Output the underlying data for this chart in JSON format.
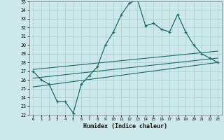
{
  "xlabel": "Humidex (Indice chaleur)",
  "background_color": "#cde8e8",
  "grid_color": "#a8d0d0",
  "line_color": "#1a6b6b",
  "xlim": [
    -0.5,
    23.5
  ],
  "ylim": [
    22,
    35
  ],
  "yticks": [
    22,
    23,
    24,
    25,
    26,
    27,
    28,
    29,
    30,
    31,
    32,
    33,
    34,
    35
  ],
  "xticks": [
    0,
    1,
    2,
    3,
    4,
    5,
    6,
    7,
    8,
    9,
    10,
    11,
    12,
    13,
    14,
    15,
    16,
    17,
    18,
    19,
    20,
    21,
    22,
    23
  ],
  "series1_x": [
    0,
    1,
    2,
    3,
    4,
    5,
    6,
    7,
    8,
    9,
    10,
    11,
    12,
    13,
    14,
    15,
    16,
    17,
    18,
    19,
    20,
    21,
    22,
    23
  ],
  "series1_y": [
    27.0,
    26.0,
    25.5,
    23.5,
    23.5,
    22.2,
    25.5,
    26.5,
    27.5,
    30.0,
    31.5,
    33.5,
    34.8,
    35.2,
    32.2,
    32.5,
    31.8,
    31.5,
    33.5,
    31.5,
    30.0,
    29.0,
    28.5,
    28.0
  ],
  "series2_x": [
    0,
    23
  ],
  "series2_y": [
    27.2,
    29.3
  ],
  "series3_x": [
    0,
    23
  ],
  "series3_y": [
    26.2,
    28.5
  ],
  "series4_x": [
    0,
    23
  ],
  "series4_y": [
    25.2,
    28.0
  ]
}
